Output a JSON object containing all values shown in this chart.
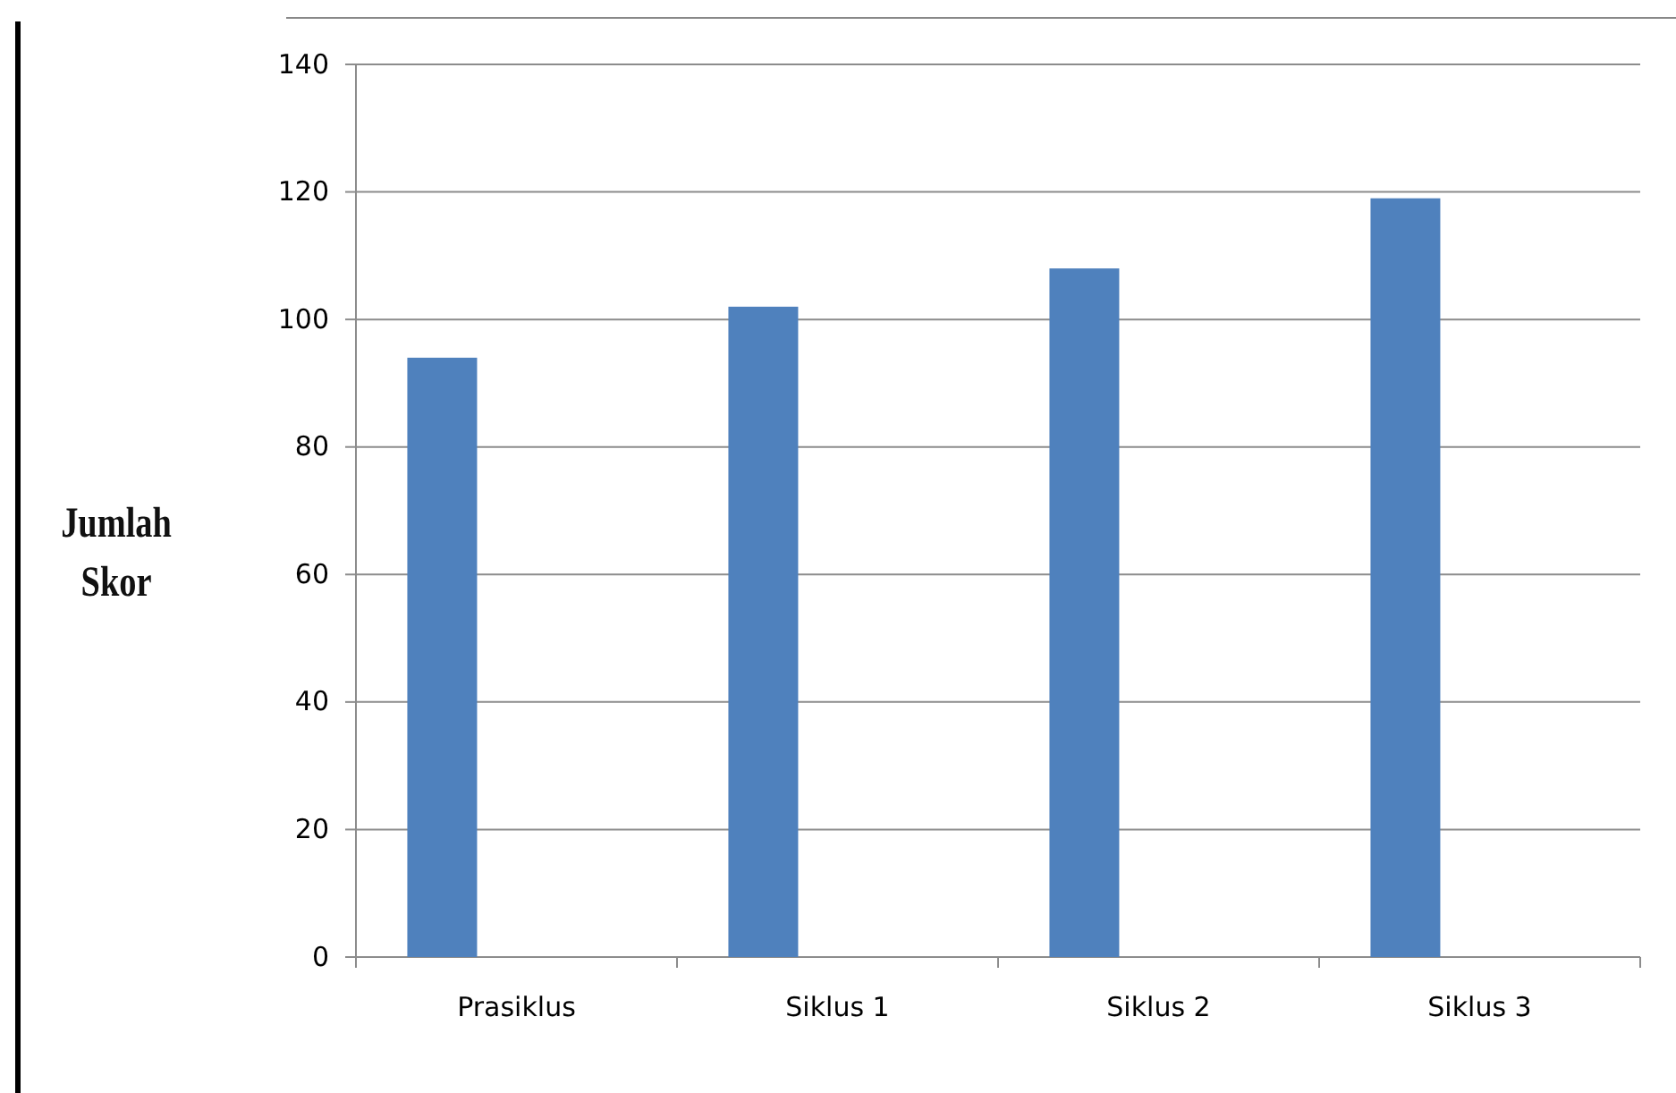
{
  "chart_data": {
    "type": "bar",
    "ylabel": "Jumlah Skor",
    "categories": [
      "Prasiklus",
      "Siklus 1",
      "Siklus 2",
      "Siklus 3"
    ],
    "values": [
      94,
      102,
      108,
      119
    ],
    "color": "#4f81bd",
    "ylim": [
      0,
      140
    ],
    "yticks": [
      0,
      20,
      40,
      60,
      80,
      100,
      120,
      140
    ],
    "grid": "y"
  }
}
